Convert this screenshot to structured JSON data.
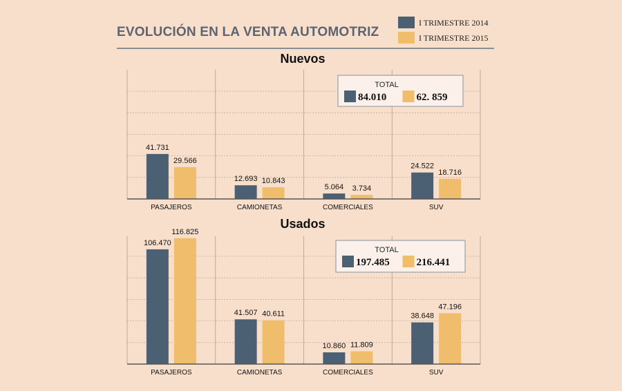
{
  "title": "EVOLUCIÓN EN LA VENTA AUTOMOTRIZ",
  "colors": {
    "s2014": "#4b6072",
    "s2015": "#f0bd6c",
    "grid": "#b9aaa0",
    "axis": "#555555"
  },
  "legend": [
    {
      "label": "I TRIMESTRE 2014"
    },
    {
      "label": "I TRIMESTRE 2015"
    }
  ],
  "chart_data": [
    {
      "type": "bar",
      "title": "Nuevos",
      "categories": [
        "PASAJEROS",
        "CAMIONETAS",
        "COMERCIALES",
        "SUV"
      ],
      "series": [
        {
          "name": "I TRIMESTRE 2014",
          "values": [
            41731,
            12693,
            5064,
            24522
          ],
          "labels": [
            "41.731",
            "12.693",
            "5.064",
            "24.522"
          ]
        },
        {
          "name": "I TRIMESTRE 2015",
          "values": [
            29566,
            10843,
            3734,
            18716
          ],
          "labels": [
            "29.566",
            "10.843",
            "3.734",
            "18.716"
          ]
        }
      ],
      "ylim": [
        0,
        120000
      ],
      "total": {
        "label": "TOTAL",
        "values": [
          "84.010",
          "62. 859"
        ]
      }
    },
    {
      "type": "bar",
      "title": "Usados",
      "categories": [
        "PASAJEROS",
        "CAMIONETAS",
        "COMERCIALES",
        "SUV"
      ],
      "series": [
        {
          "name": "I TRIMESTRE 2014",
          "values": [
            106470,
            41507,
            10860,
            38648
          ],
          "labels": [
            "106.470",
            "41.507",
            "10.860",
            "38.648"
          ]
        },
        {
          "name": "I TRIMESTRE 2015",
          "values": [
            116825,
            40611,
            11809,
            47196
          ],
          "labels": [
            "116.825",
            "40.611",
            "11.809",
            "47.196"
          ]
        }
      ],
      "ylim": [
        0,
        120000
      ],
      "total": {
        "label": "TOTAL",
        "values": [
          "197.485",
          "216.441"
        ]
      }
    }
  ]
}
